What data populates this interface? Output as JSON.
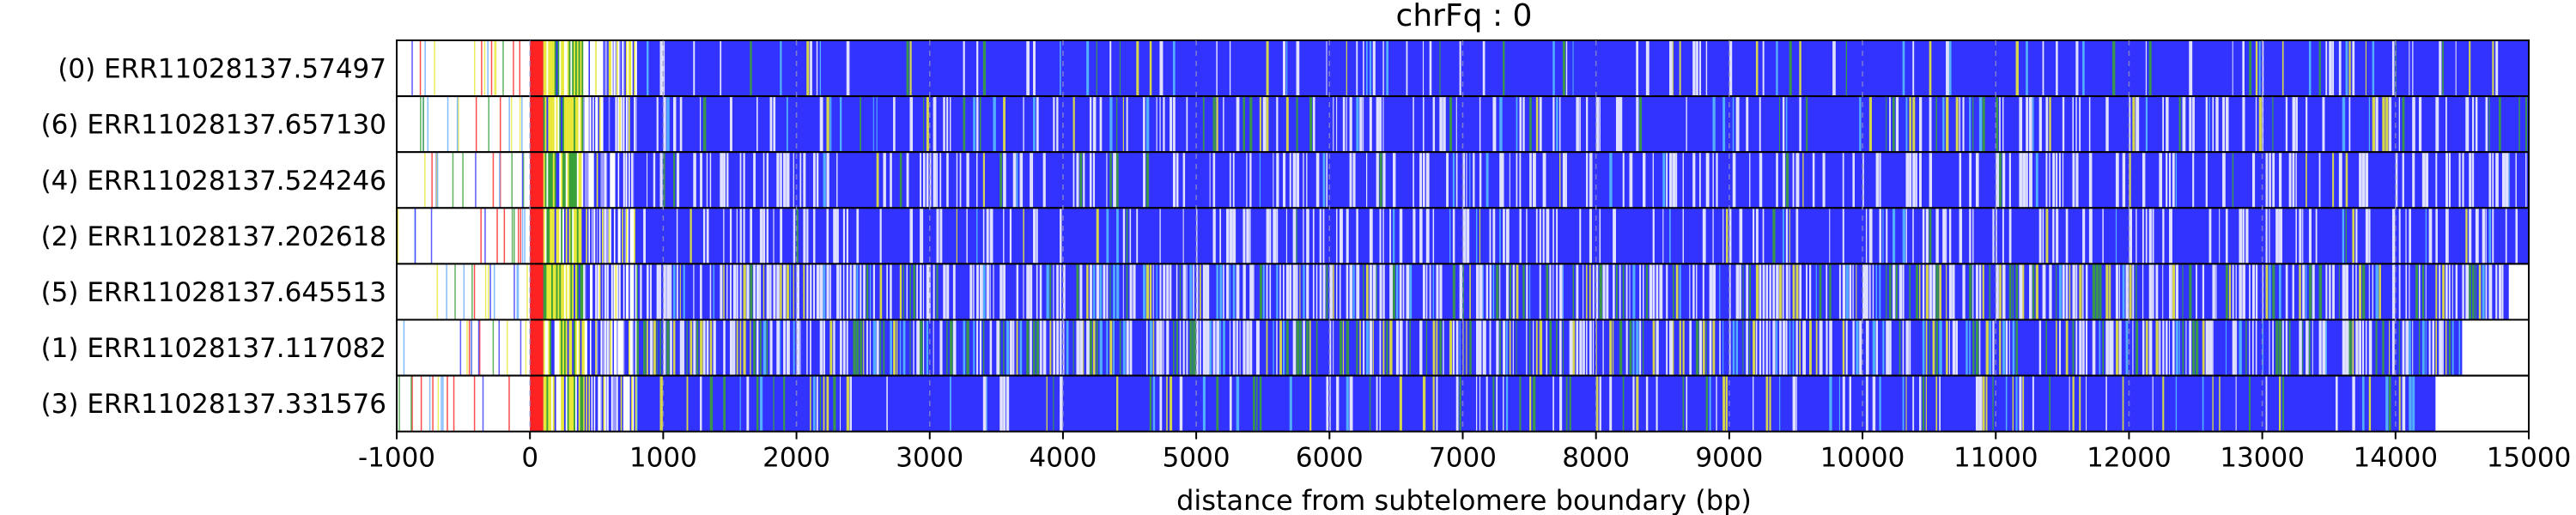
{
  "chart_data": {
    "type": "heatmap",
    "title": "chrFq : 0",
    "xlabel": "distance from subtelomere boundary (bp)",
    "xlim": [
      -1000,
      15000
    ],
    "xticks": [
      -1000,
      0,
      1000,
      2000,
      3000,
      4000,
      5000,
      6000,
      7000,
      8000,
      9000,
      10000,
      11000,
      12000,
      13000,
      14000,
      15000
    ],
    "grid": "dashed vertical at each 1000 bp tick",
    "rows": [
      {
        "label": "(0) ERR11028137.57497",
        "start": -1000,
        "end": 15000,
        "white_density": 0.1,
        "green_density": 0.1
      },
      {
        "label": "(6) ERR11028137.657130",
        "start": -1000,
        "end": 15000,
        "white_density": 0.2,
        "green_density": 0.15
      },
      {
        "label": "(4) ERR11028137.524246",
        "start": -1000,
        "end": 15000,
        "white_density": 0.35,
        "green_density": 0.05
      },
      {
        "label": "(2) ERR11028137.202618",
        "start": -1000,
        "end": 15000,
        "white_density": 0.3,
        "green_density": 0.05
      },
      {
        "label": "(5) ERR11028137.645513",
        "start": -1000,
        "end": 14850,
        "white_density": 0.45,
        "green_density": 0.3
      },
      {
        "label": "(1) ERR11028137.117082",
        "start": -1000,
        "end": 14500,
        "white_density": 0.35,
        "green_density": 0.4
      },
      {
        "label": "(3) ERR11028137.331576",
        "start": -1000,
        "end": 14300,
        "white_density": 0.1,
        "green_density": 0.15
      }
    ],
    "regions": [
      {
        "name": "pre-boundary sparse",
        "from": -1000,
        "to": 0,
        "color": "#ffffff"
      },
      {
        "name": "red block",
        "from": 0,
        "to": 100,
        "color": "#ff2a2a"
      },
      {
        "name": "yellow/green mix",
        "from": 100,
        "to": 400,
        "color": "#e0e040"
      },
      {
        "name": "white/blue transition",
        "from": 400,
        "to": 800,
        "color": "#c8c8ff"
      },
      {
        "name": "blue body",
        "from": 800,
        "to": 15000,
        "color": "#3535ff"
      }
    ],
    "colors": {
      "blue": "#3333ff",
      "red": "#ff2222",
      "yellow": "#e8e83a",
      "green": "#3aa03a",
      "white": "#ffffff",
      "grid": "#9090c0"
    }
  }
}
